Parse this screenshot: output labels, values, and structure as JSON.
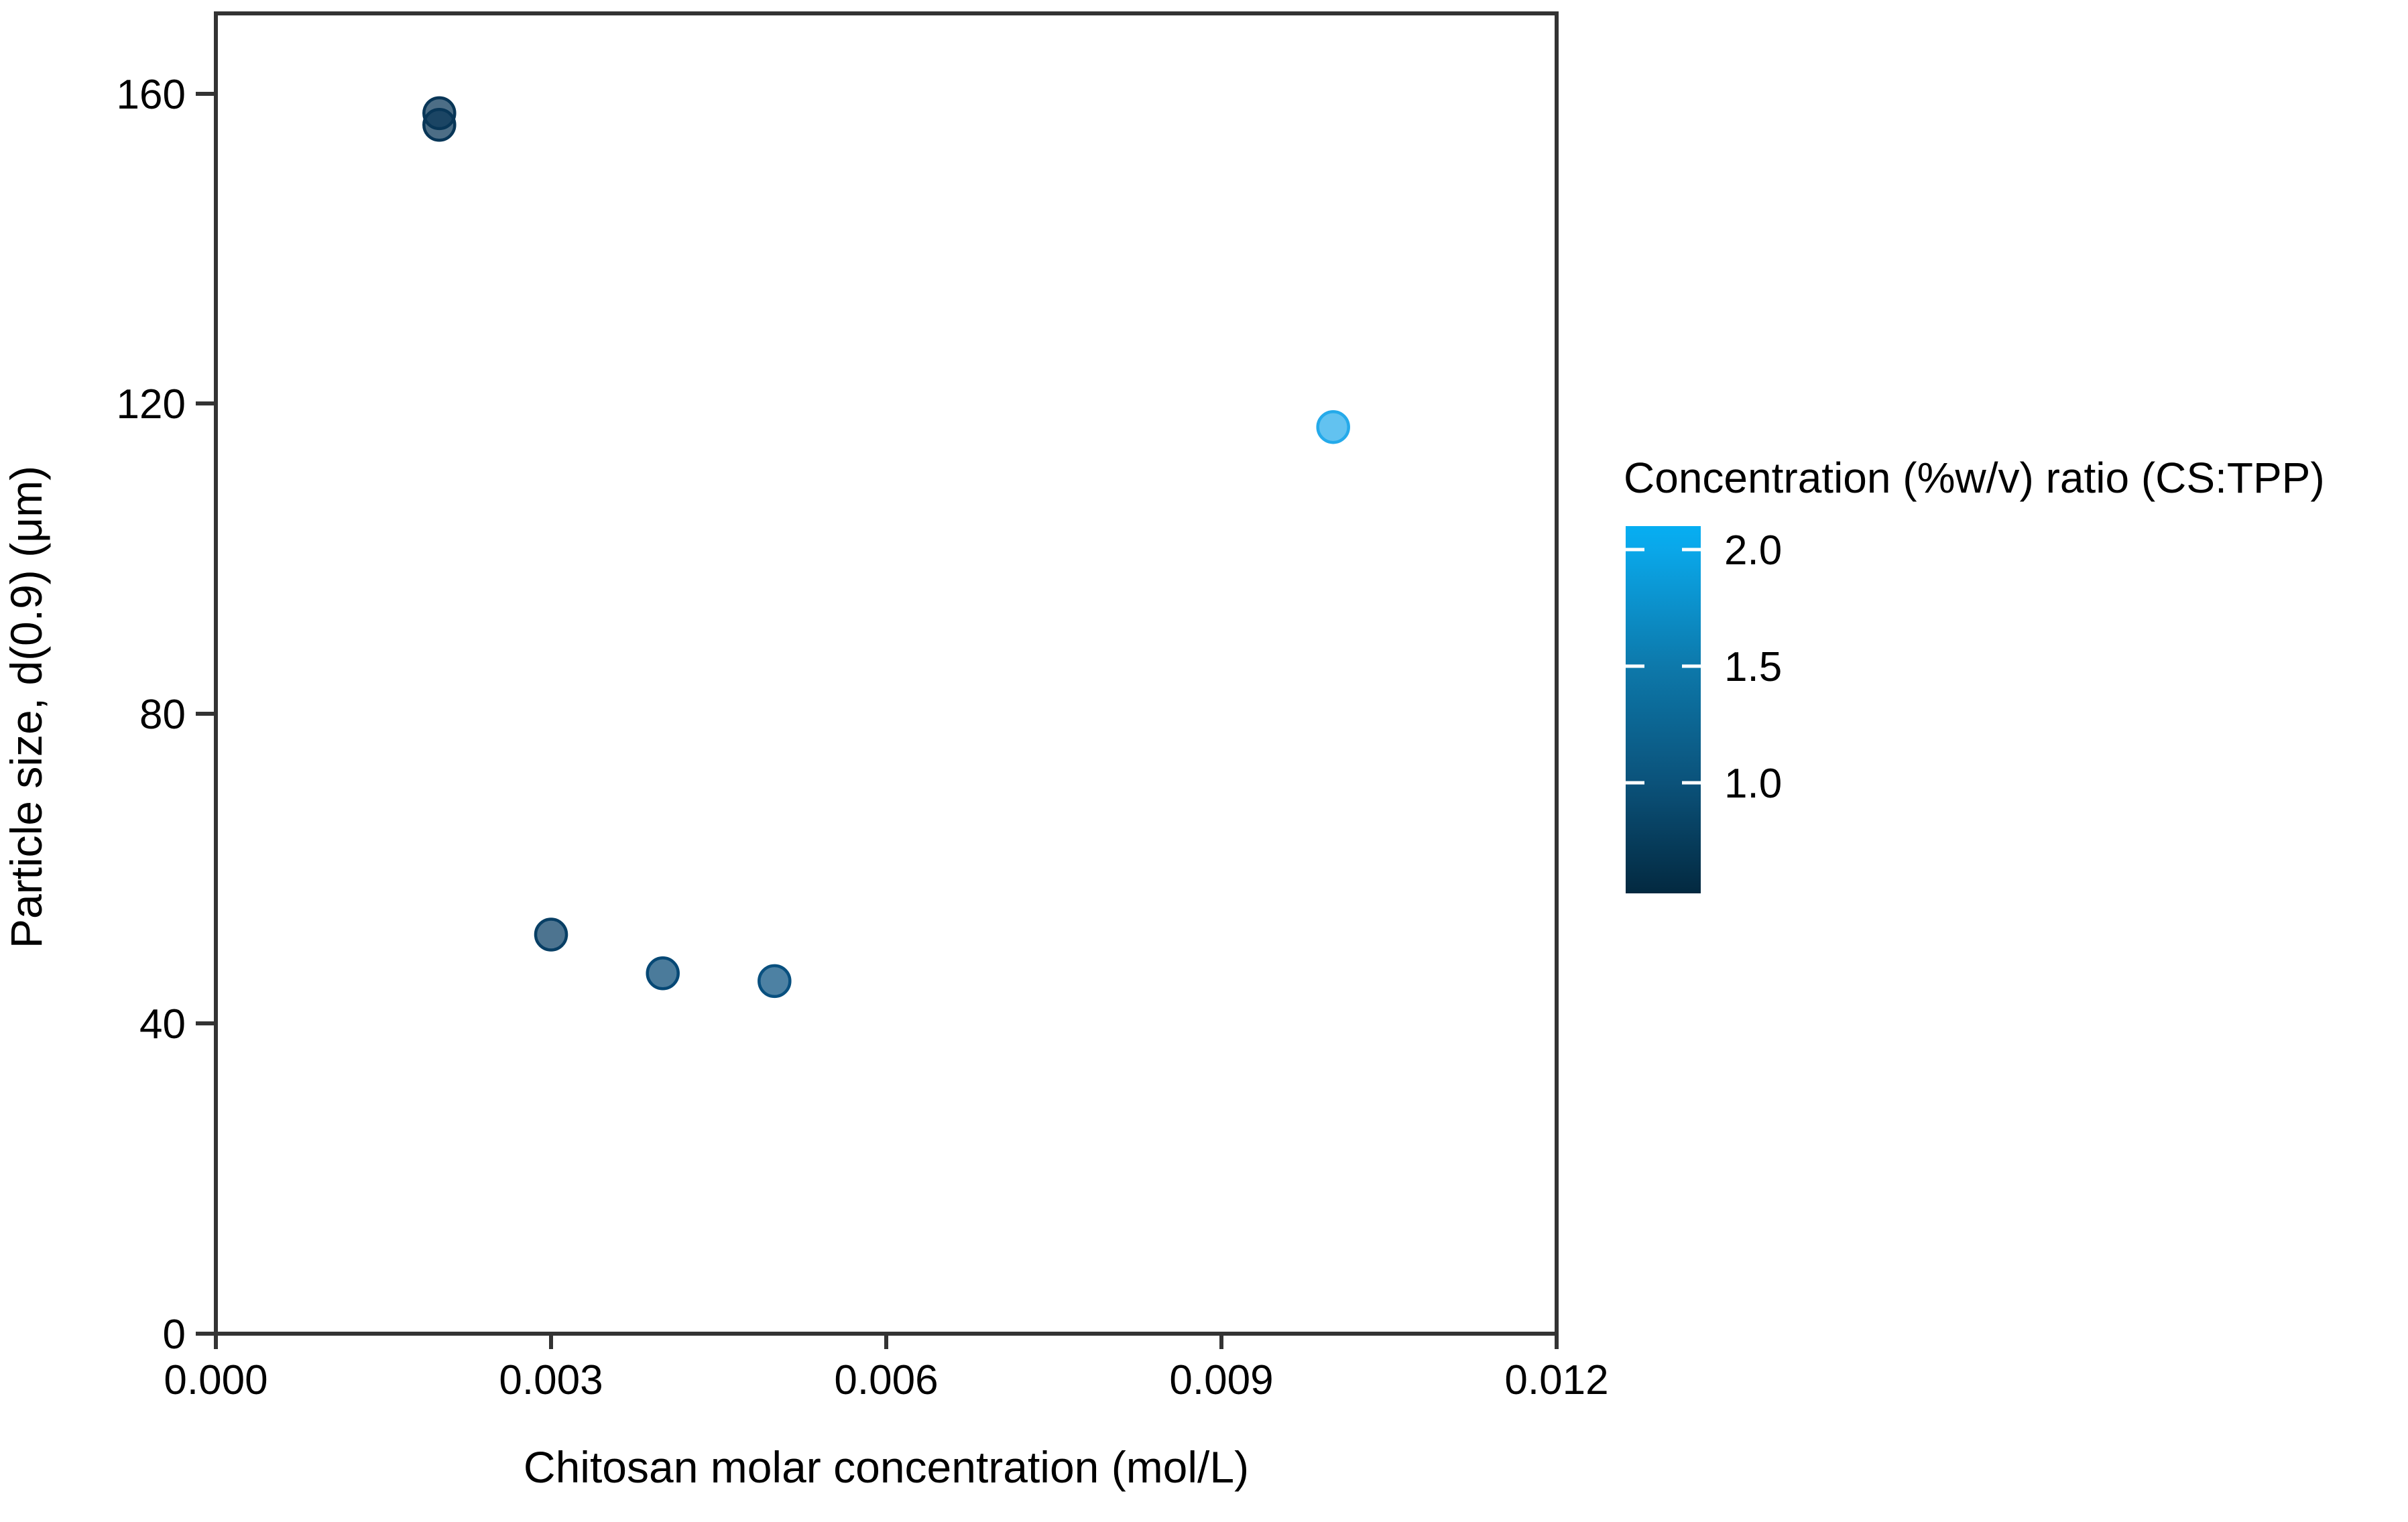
{
  "figure": {
    "background": "#ffffff",
    "frame_color": "#333333",
    "text_color": "#000000"
  },
  "chart_data": {
    "type": "scatter",
    "title": "",
    "xlabel": "Chitosan molar concentration (mol/L)",
    "ylabel": "Particle size, d(0.9) (μm)",
    "xlim": [
      0,
      0.012
    ],
    "ylim": [
      0,
      170
    ],
    "grid": false,
    "x_ticks": [
      0,
      0.003,
      0.006,
      0.009,
      0.012
    ],
    "x_tick_labels": [
      "0.000",
      "0.003",
      "0.006",
      "0.009",
      "0.012"
    ],
    "y_ticks": [
      160,
      120,
      80,
      40,
      0
    ],
    "y_tick_labels": [
      "160",
      "120",
      "80",
      "40",
      "0"
    ],
    "points": [
      {
        "x": 0.002,
        "y": 157.5,
        "ratio": 0.5,
        "color": "#083657"
      },
      {
        "x": 0.002,
        "y": 156.0,
        "ratio": 0.55,
        "color": "#083657"
      },
      {
        "x": 0.003,
        "y": 51.5,
        "ratio": 0.8,
        "color": "#083F65"
      },
      {
        "x": 0.004,
        "y": 46.5,
        "ratio": 0.9,
        "color": "#064875"
      },
      {
        "x": 0.005,
        "y": 45.5,
        "ratio": 1.0,
        "color": "#09507F"
      },
      {
        "x": 0.01,
        "y": 117.0,
        "ratio": 2.0,
        "color": "#25AAEA"
      }
    ],
    "marker": {
      "radius_px": 23,
      "stroke_width_px": 4.5,
      "fill_opacity": 0.72
    },
    "legend": {
      "title": "Concentration (%w/v) ratio (CS:TPP)",
      "type": "colorbar",
      "position": "right",
      "tick_labels": [
        "2.0",
        "1.5",
        "1.0"
      ],
      "tick_values": [
        2.0,
        1.5,
        1.0
      ],
      "range": [
        0.5,
        2.1
      ],
      "gradient_stops": [
        {
          "offset": 0.0,
          "color": "#06AEF2"
        },
        {
          "offset": 0.065,
          "color": "#0AA7E9"
        },
        {
          "offset": 0.38,
          "color": "#0D79AB"
        },
        {
          "offset": 0.7,
          "color": "#0B527A"
        },
        {
          "offset": 1.0,
          "color": "#032940"
        }
      ]
    }
  }
}
